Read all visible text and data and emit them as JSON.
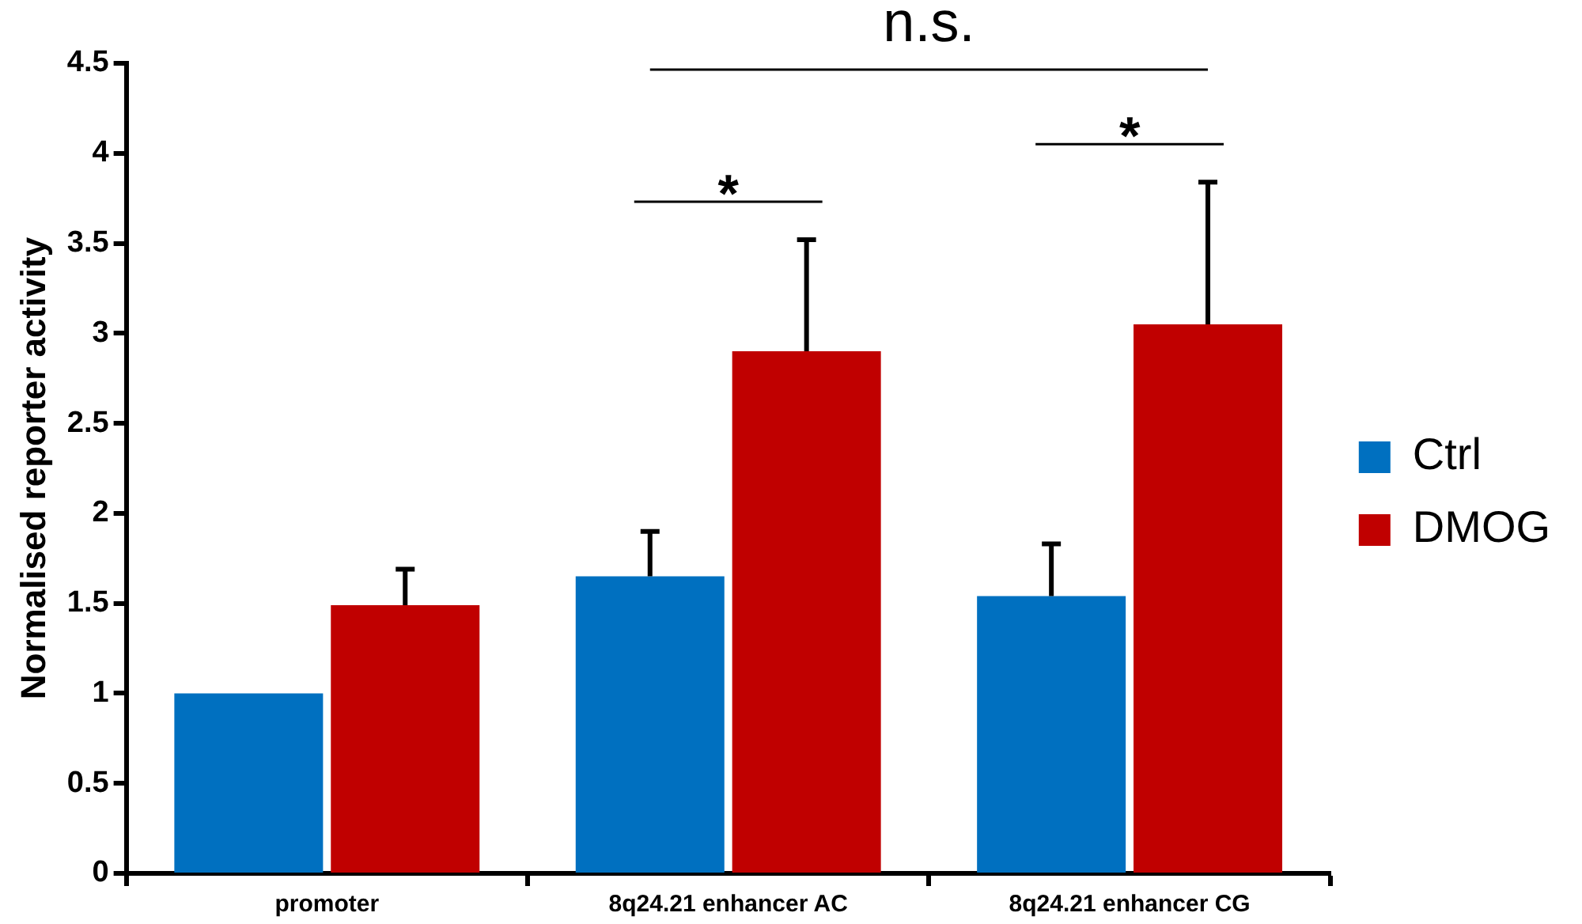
{
  "chart_data": {
    "type": "bar",
    "ylabel": "Normalised reporter activity",
    "categories": [
      "promoter",
      "8q24.21 enhancer AC",
      "8q24.21 enhancer CG"
    ],
    "series": [
      {
        "name": "Ctrl",
        "color": "#0070c0",
        "values": [
          1.0,
          1.65,
          1.54
        ],
        "errors": [
          null,
          [
            1.65,
            1.9
          ],
          [
            1.54,
            1.83
          ]
        ]
      },
      {
        "name": "DMOG",
        "color": "#c00000",
        "values": [
          1.49,
          2.9,
          3.05
        ],
        "errors": [
          [
            1.49,
            1.69
          ],
          [
            2.9,
            3.52
          ],
          [
            3.05,
            3.84
          ]
        ]
      }
    ],
    "ylim": [
      0,
      4.5
    ],
    "yticks": [
      0,
      0.5,
      1,
      1.5,
      2,
      2.5,
      3,
      3.5,
      4,
      4.5
    ],
    "grid": false,
    "legend": "right",
    "annotations": [
      "*",
      "*",
      "n.s."
    ]
  }
}
